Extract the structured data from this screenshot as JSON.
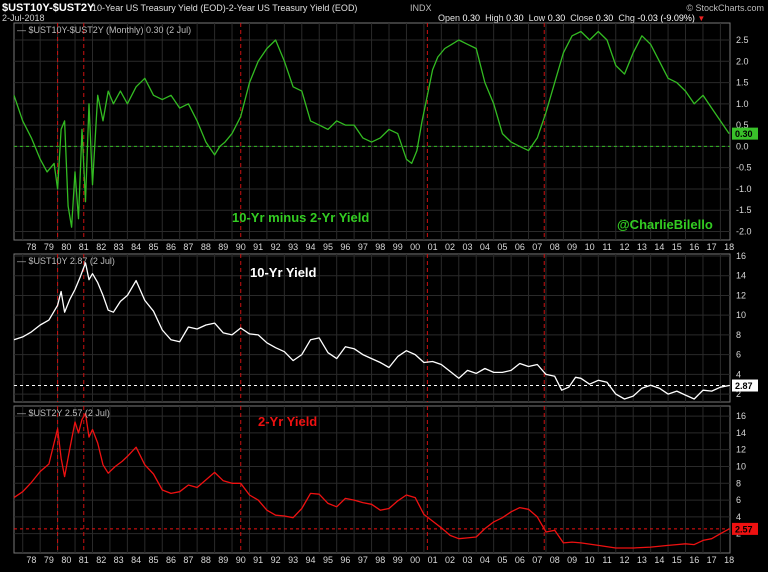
{
  "header": {
    "symbol": "$UST10Y-$UST2Y",
    "description": "10-Year US Treasury Yield (EOD)-2-Year US Treasury Yield (EOD)",
    "exchange": "INDX",
    "date": "2-Jul-2018",
    "copyright": "© StockCharts.com",
    "open_label": "Open",
    "open_value": "0.30",
    "high_label": "High",
    "high_value": "0.30",
    "low_label": "Low",
    "low_value": "0.30",
    "close_label": "Close",
    "close_value": "0.30",
    "chg_label": "Chg",
    "chg_value": "-0.03 (-9.09%)"
  },
  "colors": {
    "spread": "#33bb22",
    "ten": "#ffffff",
    "two": "#ee1111",
    "recession": "#cc1111",
    "badge_spread": "#39c02a",
    "annot_spread": "#33cc22",
    "annot_ten": "#ffffff",
    "annot_two": "#ee1111"
  },
  "x_axis_labels": [
    "78",
    "79",
    "80",
    "81",
    "82",
    "83",
    "84",
    "85",
    "86",
    "87",
    "88",
    "89",
    "90",
    "91",
    "92",
    "93",
    "94",
    "95",
    "96",
    "97",
    "98",
    "99",
    "00",
    "01",
    "02",
    "03",
    "04",
    "05",
    "06",
    "07",
    "08",
    "09",
    "10",
    "11",
    "12",
    "13",
    "14",
    "15",
    "16",
    "17",
    "18"
  ],
  "chart_data": [
    {
      "type": "line",
      "legend": "$UST10Y-$UST2Y (Monthly) 0.30 (2 Jul)",
      "annotation": "10-Yr minus 2-Yr Yield",
      "watermark": "@CharlieBilello",
      "y_ticks": [
        -2.0,
        -1.5,
        -1.0,
        -0.5,
        0.0,
        0.5,
        1.0,
        1.5,
        2.0,
        2.5
      ],
      "y_tick_labels": [
        "-2.0",
        "-1.5",
        "-1.0",
        "-0.5",
        "0.0",
        "0.5",
        "1.0",
        "1.5",
        "2.0",
        "2.5"
      ],
      "ylim": [
        -2.2,
        2.9
      ],
      "last_value": 0.3,
      "last_value_label": "0.30",
      "series": [
        {
          "x": [
            1977.5,
            1978.0,
            1978.5,
            1979.0,
            1979.4,
            1979.8,
            1980.0,
            1980.2,
            1980.4,
            1980.6,
            1980.8,
            1981.0,
            1981.2,
            1981.4,
            1981.6,
            1981.8,
            1982.0,
            1982.3,
            1982.6,
            1982.9,
            1983.2,
            1983.6,
            1984.0,
            1984.5,
            1985.0,
            1985.5,
            1986.0,
            1986.5,
            1987.0,
            1987.5,
            1988.0,
            1988.5,
            1989.0,
            1989.3,
            1989.6,
            1990.0,
            1990.5,
            1991.0,
            1991.5,
            1992.0,
            1992.5,
            1993.0,
            1993.5,
            1994.0,
            1994.5,
            1995.0,
            1995.5,
            1996.0,
            1996.5,
            1997.0,
            1997.5,
            1998.0,
            1998.5,
            1999.0,
            1999.5,
            2000.0,
            2000.3,
            2000.6,
            2000.9,
            2001.2,
            2001.5,
            2001.8,
            2002.2,
            2002.6,
            2003.0,
            2003.5,
            2004.0,
            2004.5,
            2005.0,
            2005.5,
            2006.0,
            2006.5,
            2007.0,
            2007.5,
            2008.0,
            2008.5,
            2009.0,
            2009.5,
            2010.0,
            2010.5,
            2011.0,
            2011.5,
            2012.0,
            2012.5,
            2013.0,
            2013.5,
            2014.0,
            2014.5,
            2015.0,
            2015.5,
            2016.0,
            2016.5,
            2017.0,
            2017.5,
            2018.0,
            2018.5
          ],
          "y": [
            1.2,
            0.6,
            0.2,
            -0.3,
            -0.6,
            -0.4,
            -1.0,
            0.4,
            0.6,
            -1.4,
            -1.9,
            -0.6,
            -1.7,
            0.4,
            -1.3,
            1.0,
            -0.9,
            1.2,
            0.6,
            1.3,
            1.0,
            1.3,
            1.0,
            1.4,
            1.6,
            1.2,
            1.1,
            1.2,
            0.9,
            1.0,
            0.6,
            0.1,
            -0.2,
            0.0,
            0.1,
            0.3,
            0.7,
            1.5,
            2.0,
            2.3,
            2.5,
            2.0,
            1.4,
            1.3,
            0.6,
            0.5,
            0.4,
            0.6,
            0.5,
            0.5,
            0.2,
            0.1,
            0.2,
            0.4,
            0.3,
            -0.3,
            -0.4,
            -0.1,
            0.6,
            1.2,
            1.8,
            2.1,
            2.3,
            2.4,
            2.5,
            2.4,
            2.3,
            1.5,
            1.0,
            0.3,
            0.1,
            0.0,
            -0.1,
            0.2,
            0.8,
            1.5,
            2.2,
            2.6,
            2.7,
            2.5,
            2.7,
            2.5,
            1.9,
            1.7,
            2.2,
            2.6,
            2.4,
            2.0,
            1.6,
            1.5,
            1.3,
            1.0,
            1.2,
            0.9,
            0.6,
            0.3
          ]
        }
      ]
    },
    {
      "type": "line",
      "legend": "$UST10Y 2.87 (2 Jul)",
      "annotation": "10-Yr Yield",
      "y_ticks": [
        2,
        4,
        6,
        8,
        10,
        12,
        14,
        16
      ],
      "y_tick_labels": [
        "2",
        "4",
        "6",
        "8",
        "10",
        "12",
        "14",
        "16"
      ],
      "ylim": [
        1.2,
        16.2
      ],
      "last_value": 2.87,
      "last_value_label": "2.87",
      "series": [
        {
          "x": [
            1977.5,
            1978.0,
            1978.5,
            1979.0,
            1979.5,
            1980.0,
            1980.2,
            1980.4,
            1980.7,
            1981.0,
            1981.3,
            1981.6,
            1981.8,
            1982.0,
            1982.3,
            1982.6,
            1982.9,
            1983.2,
            1983.6,
            1984.0,
            1984.5,
            1985.0,
            1985.5,
            1986.0,
            1986.5,
            1987.0,
            1987.5,
            1988.0,
            1988.5,
            1989.0,
            1989.5,
            1990.0,
            1990.5,
            1991.0,
            1991.5,
            1992.0,
            1992.5,
            1993.0,
            1993.5,
            1994.0,
            1994.5,
            1995.0,
            1995.5,
            1996.0,
            1996.5,
            1997.0,
            1997.5,
            1998.0,
            1998.5,
            1999.0,
            1999.5,
            2000.0,
            2000.5,
            2001.0,
            2001.5,
            2002.0,
            2002.5,
            2003.0,
            2003.5,
            2004.0,
            2004.5,
            2005.0,
            2005.5,
            2006.0,
            2006.5,
            2007.0,
            2007.5,
            2008.0,
            2008.5,
            2008.9,
            2009.3,
            2009.7,
            2010.0,
            2010.5,
            2011.0,
            2011.5,
            2012.0,
            2012.5,
            2013.0,
            2013.5,
            2014.0,
            2014.5,
            2015.0,
            2015.5,
            2016.0,
            2016.5,
            2017.0,
            2017.5,
            2018.0,
            2018.5
          ],
          "y": [
            7.5,
            7.8,
            8.3,
            9.0,
            9.5,
            11.0,
            12.4,
            10.3,
            11.6,
            12.6,
            13.9,
            15.3,
            13.6,
            14.2,
            13.3,
            12.0,
            10.5,
            10.3,
            11.4,
            12.0,
            13.5,
            11.5,
            10.4,
            8.5,
            7.5,
            7.3,
            8.8,
            8.6,
            9.0,
            9.2,
            8.2,
            8.0,
            8.7,
            8.1,
            8.0,
            7.2,
            6.7,
            6.3,
            5.4,
            6.0,
            7.5,
            7.7,
            6.2,
            5.6,
            6.8,
            6.6,
            6.0,
            5.6,
            5.2,
            4.7,
            5.8,
            6.4,
            6.0,
            5.2,
            5.3,
            5.0,
            4.3,
            3.6,
            4.4,
            4.1,
            4.6,
            4.2,
            4.2,
            4.4,
            5.1,
            4.8,
            5.0,
            4.0,
            3.8,
            2.4,
            2.7,
            3.7,
            3.6,
            3.0,
            3.4,
            3.2,
            2.0,
            1.5,
            1.8,
            2.6,
            2.9,
            2.6,
            2.0,
            2.3,
            1.9,
            1.5,
            2.4,
            2.3,
            2.7,
            2.87
          ]
        }
      ]
    },
    {
      "type": "line",
      "legend": "$UST2Y 2.57 (2 Jul)",
      "annotation": "2-Yr Yield",
      "y_ticks": [
        2,
        4,
        6,
        8,
        10,
        12,
        14,
        16
      ],
      "y_tick_labels": [
        "2",
        "4",
        "6",
        "8",
        "10",
        "12",
        "14",
        "16"
      ],
      "ylim": [
        -0.3,
        17.2
      ],
      "last_value": 2.57,
      "last_value_label": "2.57",
      "series": [
        {
          "x": [
            1977.5,
            1978.0,
            1978.5,
            1979.0,
            1979.5,
            1980.0,
            1980.2,
            1980.4,
            1980.7,
            1981.0,
            1981.2,
            1981.4,
            1981.6,
            1981.8,
            1982.0,
            1982.3,
            1982.6,
            1982.9,
            1983.3,
            1983.7,
            1984.0,
            1984.5,
            1985.0,
            1985.5,
            1986.0,
            1986.5,
            1987.0,
            1987.5,
            1988.0,
            1988.5,
            1989.0,
            1989.5,
            1990.0,
            1990.5,
            1991.0,
            1991.5,
            1992.0,
            1992.5,
            1993.0,
            1993.5,
            1994.0,
            1994.5,
            1995.0,
            1995.5,
            1996.0,
            1996.5,
            1997.0,
            1997.5,
            1998.0,
            1998.5,
            1999.0,
            1999.5,
            2000.0,
            2000.5,
            2001.0,
            2001.5,
            2002.0,
            2002.5,
            2003.0,
            2003.5,
            2004.0,
            2004.5,
            2005.0,
            2005.5,
            2006.0,
            2006.5,
            2007.0,
            2007.5,
            2008.0,
            2008.5,
            2009.0,
            2009.5,
            2010.0,
            2011.0,
            2012.0,
            2013.0,
            2014.0,
            2015.0,
            2015.5,
            2016.0,
            2016.5,
            2017.0,
            2017.5,
            2018.0,
            2018.5
          ],
          "y": [
            6.3,
            7.0,
            8.1,
            9.4,
            10.3,
            14.5,
            11.0,
            8.8,
            12.1,
            15.3,
            14.0,
            15.6,
            16.3,
            13.5,
            14.4,
            12.8,
            10.2,
            9.2,
            10.0,
            10.6,
            11.2,
            12.3,
            10.2,
            9.1,
            7.2,
            6.8,
            7.0,
            7.8,
            7.5,
            8.4,
            9.3,
            8.3,
            8.0,
            8.0,
            6.6,
            6.0,
            4.8,
            4.2,
            4.1,
            3.9,
            5.0,
            6.8,
            6.7,
            5.6,
            5.2,
            6.2,
            6.0,
            5.7,
            5.5,
            4.8,
            5.0,
            5.9,
            6.6,
            6.3,
            4.3,
            3.5,
            2.7,
            1.8,
            1.4,
            1.5,
            1.6,
            2.6,
            3.4,
            3.9,
            4.6,
            5.1,
            4.9,
            4.0,
            2.2,
            2.4,
            0.9,
            1.0,
            0.9,
            0.6,
            0.3,
            0.3,
            0.4,
            0.6,
            0.7,
            0.8,
            0.7,
            1.2,
            1.4,
            2.0,
            2.57
          ]
        }
      ]
    }
  ]
}
